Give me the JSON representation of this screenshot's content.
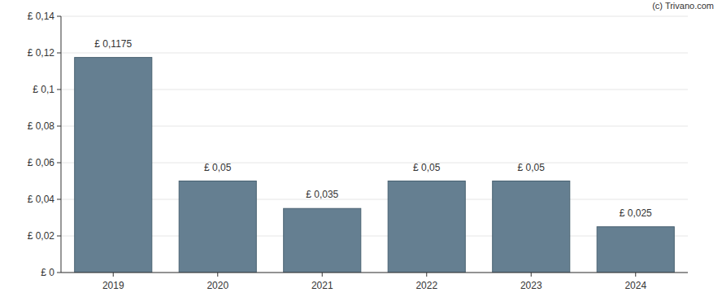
{
  "chart_data": {
    "type": "bar",
    "source": "(c) Trivano.com",
    "categories": [
      "2019",
      "2020",
      "2021",
      "2022",
      "2023",
      "2024"
    ],
    "values": [
      0.1175,
      0.05,
      0.035,
      0.05,
      0.05,
      0.025
    ],
    "value_labels": [
      "£ 0,1175",
      "£ 0,05",
      "£ 0,035",
      "£ 0,05",
      "£ 0,05",
      "£ 0,025"
    ],
    "data_labels": true,
    "color": "#657f91",
    "ylim": [
      0,
      0.14
    ],
    "yticks": [
      {
        "value": 0,
        "label": "£ 0"
      },
      {
        "value": 0.02,
        "label": "£ 0,02"
      },
      {
        "value": 0.04,
        "label": "£ 0,04"
      },
      {
        "value": 0.06,
        "label": "£ 0,06"
      },
      {
        "value": 0.08,
        "label": "£ 0,08"
      },
      {
        "value": 0.1,
        "label": "£ 0,1"
      },
      {
        "value": 0.12,
        "label": "£ 0,12"
      },
      {
        "value": 0.14,
        "label": "£ 0,14"
      }
    ],
    "grid": true
  }
}
